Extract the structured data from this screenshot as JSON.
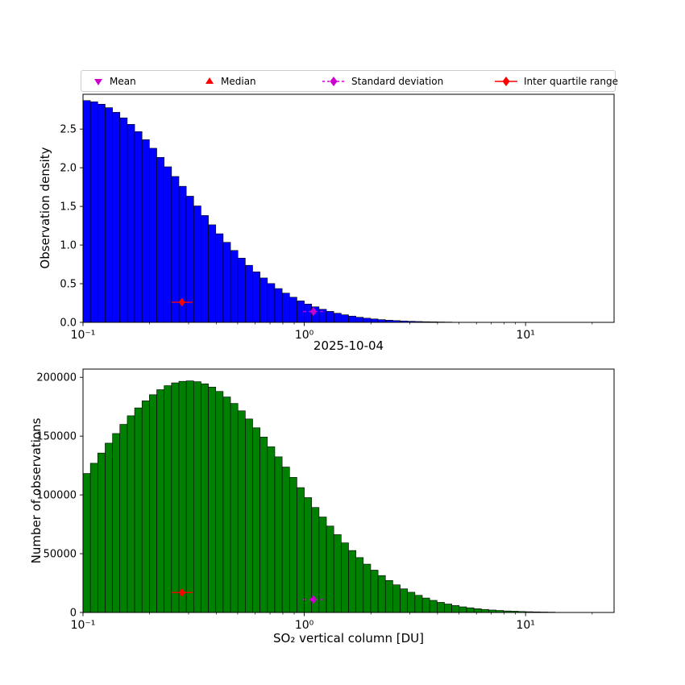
{
  "figure": {
    "background": "#ffffff"
  },
  "legend": {
    "items": [
      {
        "label": "Mean",
        "marker": "triangle-down",
        "color": "#cc00cc"
      },
      {
        "label": "Median",
        "marker": "triangle-up",
        "color": "#ff0000"
      },
      {
        "label": "Standard deviation",
        "marker": "diamond-dashed-line",
        "color": "#cc00cc"
      },
      {
        "label": "Inter quartile range",
        "marker": "diamond-solid-line",
        "color": "#ff0000"
      }
    ]
  },
  "chart_data": {
    "type": "bar",
    "subtype": "histogram",
    "x_scale": "log",
    "x_range": [
      0.1,
      25.1
    ],
    "axis_log10": [
      -1.0,
      1.4
    ],
    "bins_log10": {
      "start": -1.0,
      "end": 1.4,
      "count": 72
    },
    "xticks": {
      "major": [
        0.1,
        1,
        10
      ],
      "major_labels": [
        "10⁻¹",
        "10⁰",
        "10¹"
      ],
      "minor": [
        0.2,
        0.3,
        0.4,
        0.5,
        0.6,
        0.7,
        0.8,
        0.9,
        2,
        3,
        4,
        5,
        6,
        7,
        8,
        9,
        20
      ]
    },
    "charts": [
      {
        "name": "observation-density",
        "ylabel": "Observation density",
        "xlabel": "2025-10-04",
        "bar_color": "#0000ff",
        "bar_edge_color": "#000000",
        "ylim": [
          0,
          2.95
        ],
        "yticks": [
          0.0,
          0.5,
          1.0,
          1.5,
          2.0,
          2.5
        ],
        "ytick_labels": [
          "0.0",
          "0.5",
          "1.0",
          "1.5",
          "2.0",
          "2.5"
        ],
        "values": [
          2.869,
          2.853,
          2.822,
          2.777,
          2.717,
          2.645,
          2.561,
          2.467,
          2.363,
          2.252,
          2.134,
          2.012,
          1.887,
          1.76,
          1.632,
          1.506,
          1.382,
          1.262,
          1.146,
          1.035,
          0.93,
          0.831,
          0.738,
          0.653,
          0.574,
          0.502,
          0.437,
          0.378,
          0.325,
          0.278,
          0.237,
          0.201,
          0.169,
          0.142,
          0.118,
          0.098,
          0.081,
          0.066,
          0.054,
          0.044,
          0.035,
          0.028,
          0.023,
          0.018,
          0.014,
          0.011,
          0.0087,
          0.0068,
          0.0053,
          0.004,
          0.0031,
          0.0023,
          0.0018,
          0.0013,
          0.001,
          0.0008,
          0.0006,
          0.0005,
          0.0004,
          0.0003,
          0.0002,
          0.0002,
          0.0001,
          0.0001,
          0.0001,
          0.0001,
          0,
          0,
          0,
          0,
          0,
          0
        ],
        "markers": [
          {
            "name": "inter-quartile-range",
            "x": 0.28,
            "y": 0.26,
            "color": "#ff0000",
            "shape": "diamond",
            "line": "solid"
          },
          {
            "name": "standard-deviation",
            "x": 1.1,
            "y": 0.14,
            "color": "#cc00cc",
            "shape": "diamond",
            "line": "dashed"
          }
        ]
      },
      {
        "name": "number-of-observations",
        "ylabel": "Number of observations",
        "xlabel": "SO₂ vertical column [DU]",
        "bar_color": "#008000",
        "bar_edge_color": "#000000",
        "ylim": [
          0,
          207000
        ],
        "yticks": [
          0,
          50000,
          100000,
          150000,
          200000
        ],
        "ytick_labels": [
          "0",
          "50000",
          "100000",
          "150000",
          "200000"
        ],
        "values": [
          118200,
          126900,
          135600,
          144000,
          152200,
          160000,
          167300,
          174000,
          180000,
          185200,
          189500,
          192900,
          195300,
          196600,
          197000,
          196300,
          194500,
          191700,
          188000,
          183300,
          177800,
          171500,
          164600,
          157100,
          149200,
          140900,
          132400,
          123700,
          114900,
          106200,
          97700,
          89300,
          81200,
          73500,
          66200,
          59200,
          52700,
          46700,
          41100,
          36000,
          31400,
          27200,
          23500,
          20100,
          17200,
          14600,
          12300,
          10300,
          8600,
          7200,
          5900,
          4800,
          4000,
          3200,
          2600,
          2100,
          1700,
          1300,
          1100,
          830,
          650,
          510,
          390,
          300,
          230,
          180,
          130,
          100,
          77,
          57,
          41,
          32
        ],
        "markers": [
          {
            "name": "inter-quartile-range",
            "x": 0.28,
            "y": 17000,
            "color": "#ff0000",
            "shape": "diamond",
            "line": "solid"
          },
          {
            "name": "standard-deviation",
            "x": 1.1,
            "y": 11000,
            "color": "#cc00cc",
            "shape": "diamond",
            "line": "dashed"
          }
        ]
      }
    ]
  }
}
